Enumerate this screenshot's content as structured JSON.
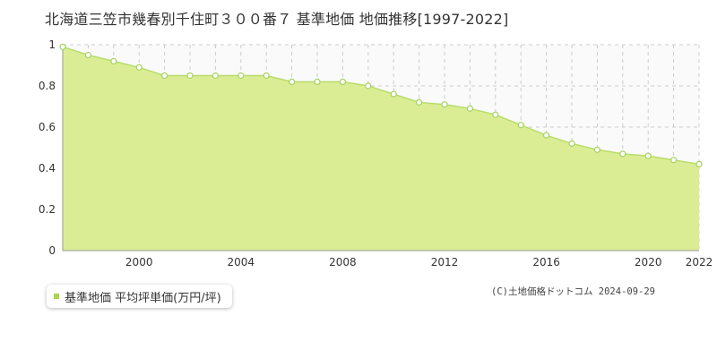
{
  "title": "北海道三笠市幾春別千住町３００番７  基準地価  地価推移[1997-2022]",
  "credit": "(C)土地価格ドットコム 2024-09-29",
  "colors": {
    "fill": "#dbed94",
    "line": "#b8dc6c",
    "marker_stroke": "#a8d060",
    "marker_fill": "#ffffff",
    "grid": "#cccccc",
    "legend_swatch": "#a8d64a"
  },
  "chart_data": {
    "type": "area",
    "title": "北海道三笠市幾春別千住町３００番７  基準地価  地価推移[1997-2022]",
    "xlabel": "",
    "ylabel": "",
    "x": [
      1997,
      1998,
      1999,
      2000,
      2001,
      2002,
      2003,
      2004,
      2005,
      2006,
      2007,
      2008,
      2009,
      2010,
      2011,
      2012,
      2013,
      2014,
      2015,
      2016,
      2017,
      2018,
      2019,
      2020,
      2021,
      2022
    ],
    "xlim": [
      1997,
      2022
    ],
    "ylim": [
      0,
      1
    ],
    "x_ticks": [
      "2000",
      "2004",
      "2008",
      "2012",
      "2016",
      "2020",
      "2022"
    ],
    "y_ticks": [
      "0",
      "0.2",
      "0.4",
      "0.6",
      "0.8",
      "1"
    ],
    "grid": true,
    "legend_position": "bottom-left",
    "series": [
      {
        "name": "基準地価 平均坪単価(万円/坪)",
        "values": [
          0.99,
          0.95,
          0.92,
          0.89,
          0.85,
          0.85,
          0.85,
          0.85,
          0.85,
          0.82,
          0.82,
          0.82,
          0.8,
          0.76,
          0.72,
          0.71,
          0.69,
          0.66,
          0.61,
          0.56,
          0.52,
          0.49,
          0.47,
          0.46,
          0.44,
          0.42
        ]
      }
    ]
  }
}
